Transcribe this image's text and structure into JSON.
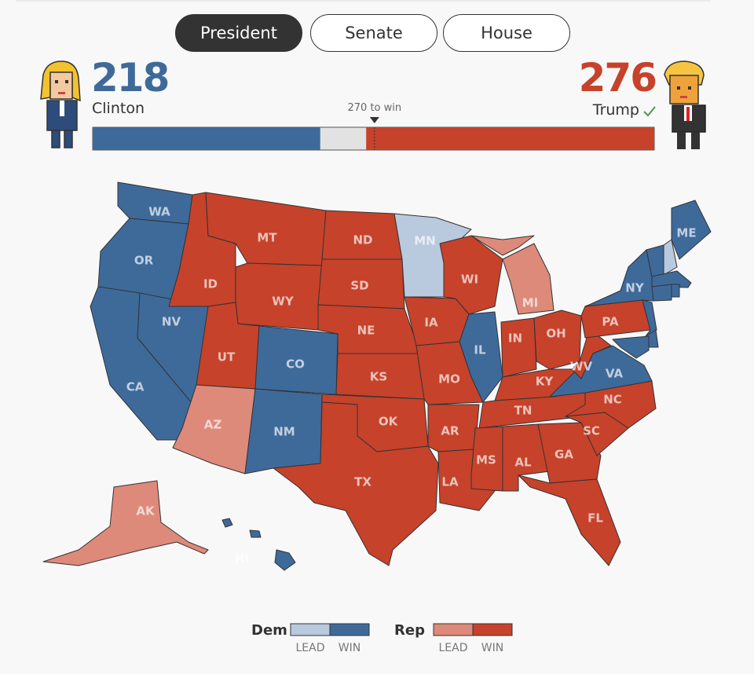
{
  "tabs": {
    "items": [
      "President",
      "Senate",
      "House"
    ],
    "active": 0
  },
  "candidates": [
    {
      "name": "Clinton",
      "votes": 218,
      "color": "#3e6a9a"
    },
    {
      "name": "Trump",
      "votes": 276,
      "color": "#c6422b"
    }
  ],
  "threshold": {
    "value": 270,
    "label": "270 to win"
  },
  "bar_range": [
    0,
    538
  ],
  "map": {
    "states": [
      {
        "label": "WA",
        "color": "#3e6a9a"
      },
      {
        "label": "OR",
        "color": "#3e6a9a"
      },
      {
        "label": "CA",
        "color": "#3e6a9a"
      },
      {
        "label": "NV",
        "color": "#3e6a9a"
      },
      {
        "label": "ID",
        "color": "#c6422b"
      },
      {
        "label": "MT",
        "color": "#c6422b"
      },
      {
        "label": "WY",
        "color": "#c6422b"
      },
      {
        "label": "UT",
        "color": "#c6422b"
      },
      {
        "label": "CO",
        "color": "#3e6a9a"
      },
      {
        "label": "AZ",
        "color": "#de8a7a"
      },
      {
        "label": "NM",
        "color": "#3e6a9a"
      },
      {
        "label": "ND",
        "color": "#c6422b"
      },
      {
        "label": "SD",
        "color": "#c6422b"
      },
      {
        "label": "NE",
        "color": "#c6422b"
      },
      {
        "label": "KS",
        "color": "#c6422b"
      },
      {
        "label": "OK",
        "color": "#c6422b"
      },
      {
        "label": "TX",
        "color": "#c6422b"
      },
      {
        "label": "MN",
        "color": "#b9c9de"
      },
      {
        "label": "IA",
        "color": "#c6422b"
      },
      {
        "label": "MO",
        "color": "#c6422b"
      },
      {
        "label": "AR",
        "color": "#c6422b"
      },
      {
        "label": "LA",
        "color": "#c6422b"
      },
      {
        "label": "WI",
        "color": "#c6422b"
      },
      {
        "label": "IL",
        "color": "#3e6a9a"
      },
      {
        "label": "MI",
        "color": "#de8a7a"
      },
      {
        "label": "IN",
        "color": "#c6422b"
      },
      {
        "label": "OH",
        "color": "#c6422b"
      },
      {
        "label": "KY",
        "color": "#c6422b"
      },
      {
        "label": "TN",
        "color": "#c6422b"
      },
      {
        "label": "MS",
        "color": "#c6422b"
      },
      {
        "label": "AL",
        "color": "#c6422b"
      },
      {
        "label": "GA",
        "color": "#c6422b"
      },
      {
        "label": "FL",
        "color": "#c6422b"
      },
      {
        "label": "SC",
        "color": "#c6422b"
      },
      {
        "label": "NC",
        "color": "#c6422b"
      },
      {
        "label": "VA",
        "color": "#3e6a9a"
      },
      {
        "label": "WV",
        "color": "#c6422b"
      },
      {
        "label": "PA",
        "color": "#c6422b"
      },
      {
        "label": "NY",
        "color": "#3e6a9a"
      },
      {
        "label": "ME",
        "color": "#3e6a9a"
      },
      {
        "label": "AK",
        "color": "#de8a7a"
      },
      {
        "label": "HI",
        "color": "#3e6a9a"
      },
      {
        "label": null,
        "color": "#3e6a9a"
      },
      {
        "label": null,
        "color": "#b9c9de"
      },
      {
        "label": null,
        "color": "#3e6a9a"
      },
      {
        "label": null,
        "color": "#3e6a9a"
      },
      {
        "label": null,
        "color": "#3e6a9a"
      },
      {
        "label": null,
        "color": "#3e6a9a"
      },
      {
        "label": null,
        "color": "#3e6a9a"
      },
      {
        "label": null,
        "color": "#3e6a9a"
      }
    ]
  },
  "legend": [
    {
      "party": "Dem",
      "items": [
        {
          "label": "LEAD",
          "color": "#b9c9de"
        },
        {
          "label": "WIN",
          "color": "#3e6a9a"
        }
      ]
    },
    {
      "party": "Rep",
      "items": [
        {
          "label": "LEAD",
          "color": "#de8a7a"
        },
        {
          "label": "WIN",
          "color": "#c6422b"
        }
      ]
    }
  ]
}
